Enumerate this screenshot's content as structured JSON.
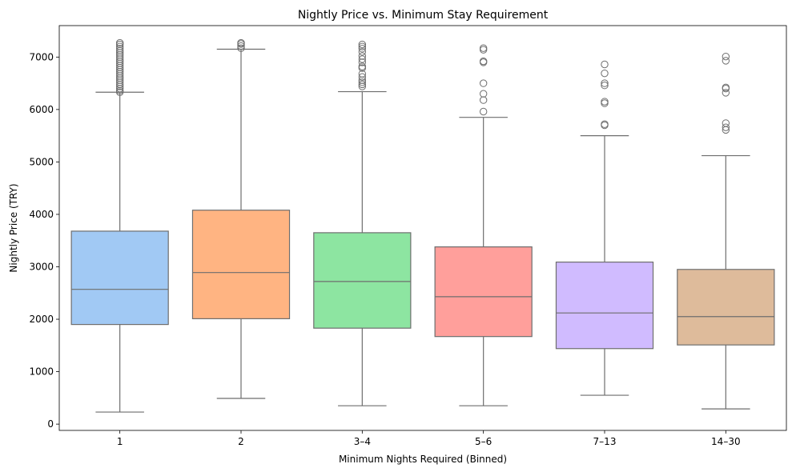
{
  "chart_data": {
    "type": "box",
    "title": "Nightly Price vs. Minimum Stay Requirement",
    "xlabel": "Minimum Nights Required (Binned)",
    "ylabel": "Nightly Price (TRY)",
    "ylim": [
      -120,
      7600
    ],
    "yticks": [
      0,
      1000,
      2000,
      3000,
      4000,
      5000,
      6000,
      7000
    ],
    "grid": false,
    "legend": "none",
    "line_color": "#6e6e6e",
    "categories": [
      "1",
      "2",
      "3–4",
      "5–6",
      "7–13",
      "14–30"
    ],
    "colors": [
      "#a1c9f4",
      "#ffb482",
      "#8de5a1",
      "#ff9f9b",
      "#d0bbff",
      "#debb9b"
    ],
    "boxes": [
      {
        "category": "1",
        "whisker_low": 230,
        "q1": 1900,
        "median": 2570,
        "q3": 3680,
        "whisker_high": 6330,
        "outliers": [
          6330,
          6360,
          6400,
          6440,
          6480,
          6520,
          6560,
          6600,
          6640,
          6680,
          6720,
          6760,
          6800,
          6840,
          6880,
          6920,
          6960,
          7000,
          7040,
          7080,
          7120,
          7160,
          7200,
          7240,
          7270
        ]
      },
      {
        "category": "2",
        "whisker_low": 490,
        "q1": 2010,
        "median": 2890,
        "q3": 4080,
        "whisker_high": 7150,
        "outliers": [
          7170,
          7210,
          7250,
          7270
        ]
      },
      {
        "category": "3–4",
        "whisker_low": 350,
        "q1": 1830,
        "median": 2720,
        "q3": 3650,
        "whisker_high": 6340,
        "outliers": [
          6440,
          6480,
          6520,
          6560,
          6620,
          6680,
          6790,
          6820,
          6900,
          6960,
          7020,
          7100,
          7160,
          7200,
          7240
        ]
      },
      {
        "category": "5–6",
        "whisker_low": 350,
        "q1": 1670,
        "median": 2430,
        "q3": 3380,
        "whisker_high": 5850,
        "outliers": [
          5960,
          6180,
          6300,
          6500,
          6900,
          6920,
          7140,
          7170
        ]
      },
      {
        "category": "7–13",
        "whisker_low": 550,
        "q1": 1440,
        "median": 2120,
        "q3": 3090,
        "whisker_high": 5500,
        "outliers": [
          5700,
          5720,
          6120,
          6150,
          6460,
          6500,
          6690,
          6860
        ]
      },
      {
        "category": "14–30",
        "whisker_low": 290,
        "q1": 1510,
        "median": 2050,
        "q3": 2950,
        "whisker_high": 5120,
        "outliers": [
          5610,
          5660,
          5740,
          6320,
          6400,
          6420,
          6930,
          7010
        ]
      }
    ]
  }
}
